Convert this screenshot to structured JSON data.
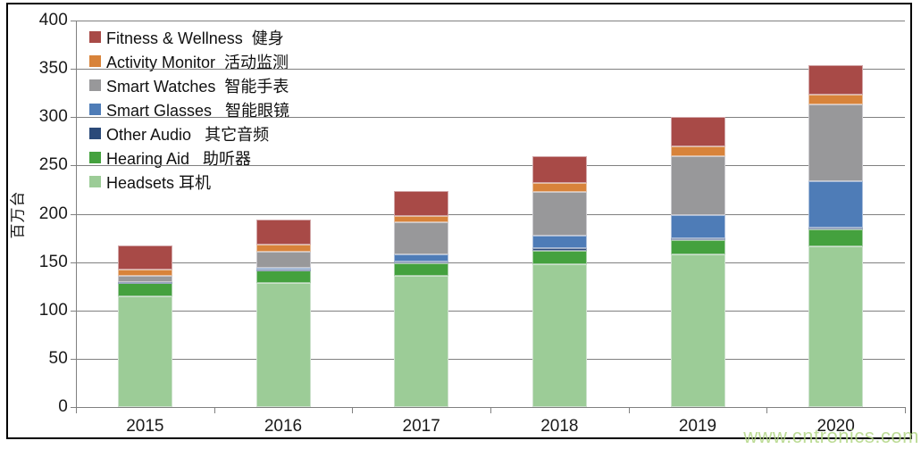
{
  "chart_data": {
    "type": "bar",
    "stacked": true,
    "ylabel": "百万台",
    "ylim": [
      0,
      400
    ],
    "ytick_step": 50,
    "yticks": [
      0,
      50,
      100,
      150,
      200,
      250,
      300,
      350,
      400
    ],
    "grid": true,
    "legend_position": "top-left",
    "categories": [
      "2015",
      "2016",
      "2017",
      "2018",
      "2019",
      "2020"
    ],
    "series": [
      {
        "label": "Headsets 耳机",
        "color": "#9ccc97",
        "values": [
          115,
          128,
          136,
          148,
          158,
          166
        ]
      },
      {
        "label": "Hearing Aid   助听器",
        "color": "#44a13e",
        "values": [
          13,
          13,
          13,
          14,
          15,
          18
        ]
      },
      {
        "label": "Other Audio   其它音频",
        "color": "#2b4a79",
        "values": [
          1,
          1,
          2,
          2,
          2,
          2
        ]
      },
      {
        "label": "Smart Glasses   智能眼镜",
        "color": "#4e7cb7",
        "values": [
          0,
          2,
          7,
          13,
          24,
          48
        ]
      },
      {
        "label": "Smart Watches  智能手表",
        "color": "#98989a",
        "values": [
          7,
          17,
          33,
          46,
          61,
          79
        ]
      },
      {
        "label": "Activity Monitor  活动监测",
        "color": "#d8833a",
        "values": [
          6,
          7,
          7,
          9,
          10,
          10
        ]
      },
      {
        "label": "Fitness & Wellness  健身",
        "color": "#a84a47",
        "values": [
          25,
          26,
          26,
          28,
          30,
          31
        ]
      }
    ],
    "totals": [
      167,
      194,
      224,
      260,
      300,
      354
    ]
  },
  "watermark": {
    "text": "www.cntronics.com",
    "color": "#b2d685"
  },
  "colors": {
    "gridline": "#808080",
    "axis": "#808080",
    "frame": "#000000",
    "text": "#1a1a1a"
  }
}
